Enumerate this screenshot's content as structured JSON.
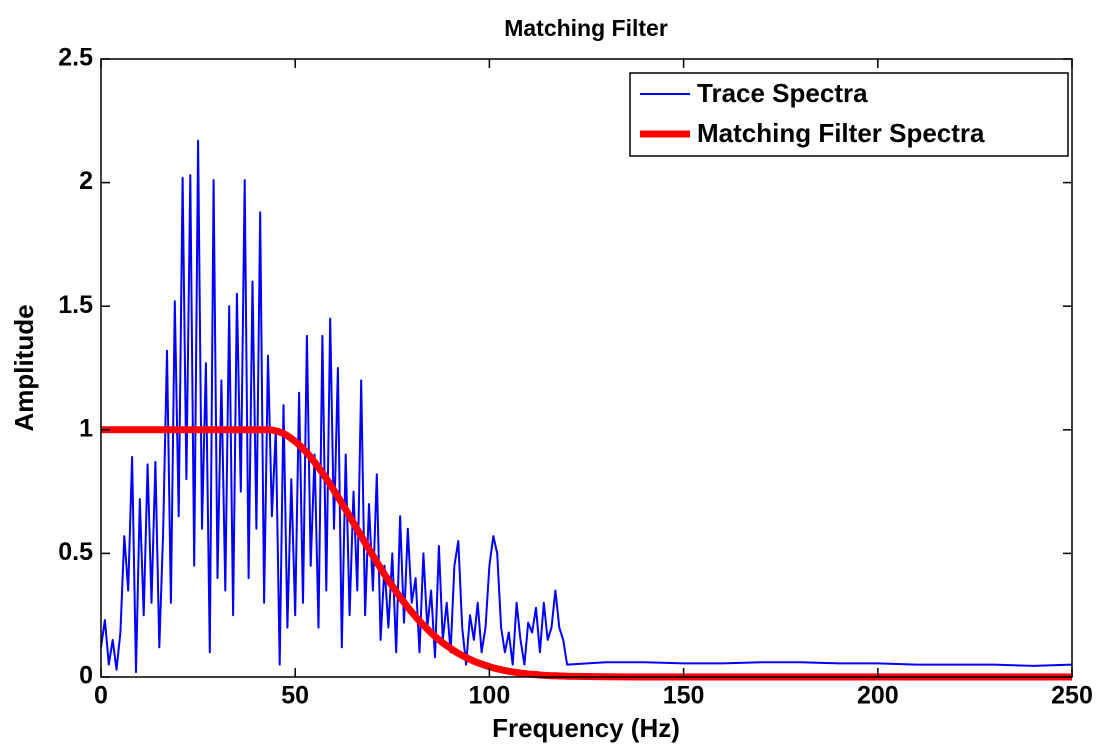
{
  "chart_data": {
    "type": "line",
    "title": "Matching Filter",
    "xlabel": "Frequency (Hz)",
    "ylabel": "Amplitude",
    "x": [
      0,
      1,
      2,
      3,
      4,
      5,
      6,
      7,
      8,
      9,
      10,
      11,
      12,
      13,
      14,
      15,
      16,
      17,
      18,
      19,
      20,
      21,
      22,
      23,
      24,
      25,
      26,
      27,
      28,
      29,
      30,
      31,
      32,
      33,
      34,
      35,
      36,
      37,
      38,
      39,
      40,
      41,
      42,
      43,
      44,
      45,
      46,
      47,
      48,
      49,
      50,
      51,
      52,
      53,
      54,
      55,
      56,
      57,
      58,
      59,
      60,
      61,
      62,
      63,
      64,
      65,
      66,
      67,
      68,
      69,
      70,
      71,
      72,
      73,
      74,
      75,
      76,
      77,
      78,
      79,
      80,
      81,
      82,
      83,
      84,
      85,
      86,
      87,
      88,
      89,
      90,
      91,
      92,
      93,
      94,
      95,
      96,
      97,
      98,
      99,
      100,
      101,
      102,
      103,
      104,
      105,
      106,
      107,
      108,
      109,
      110,
      111,
      112,
      113,
      114,
      115,
      116,
      117,
      118,
      119,
      120,
      130,
      140,
      150,
      160,
      170,
      180,
      190,
      200,
      210,
      220,
      230,
      240,
      250
    ],
    "series": [
      {
        "name": "Trace Spectra",
        "color": "#0000ff",
        "width": 2,
        "values": [
          0.12,
          0.23,
          0.05,
          0.15,
          0.03,
          0.18,
          0.57,
          0.35,
          0.89,
          0.02,
          0.72,
          0.25,
          0.86,
          0.3,
          0.87,
          0.12,
          0.58,
          1.32,
          0.3,
          1.52,
          0.65,
          2.02,
          0.8,
          2.03,
          0.45,
          2.17,
          0.6,
          1.27,
          0.1,
          2.01,
          0.4,
          1.2,
          0.35,
          1.5,
          0.25,
          1.55,
          0.75,
          2.01,
          0.4,
          1.6,
          0.6,
          1.88,
          0.3,
          1.3,
          0.65,
          1.0,
          0.05,
          1.1,
          0.2,
          0.8,
          0.25,
          1.15,
          0.3,
          1.38,
          0.45,
          0.9,
          0.2,
          1.38,
          0.35,
          1.45,
          0.6,
          1.25,
          0.12,
          0.9,
          0.25,
          0.75,
          0.35,
          1.2,
          0.25,
          0.7,
          0.35,
          0.82,
          0.15,
          0.45,
          0.2,
          0.5,
          0.1,
          0.65,
          0.22,
          0.6,
          0.3,
          0.4,
          0.1,
          0.5,
          0.2,
          0.35,
          0.08,
          0.53,
          0.15,
          0.3,
          0.1,
          0.45,
          0.55,
          0.2,
          0.05,
          0.25,
          0.15,
          0.3,
          0.1,
          0.2,
          0.45,
          0.57,
          0.5,
          0.2,
          0.1,
          0.18,
          0.05,
          0.3,
          0.15,
          0.05,
          0.22,
          0.18,
          0.28,
          0.1,
          0.3,
          0.15,
          0.2,
          0.35,
          0.2,
          0.15,
          0.05,
          0.06,
          0.06,
          0.055,
          0.055,
          0.06,
          0.06,
          0.055,
          0.055,
          0.05,
          0.05,
          0.05,
          0.045,
          0.05
        ]
      },
      {
        "name": "Matching Filter Spectra",
        "color": "#ff0000",
        "width": 7,
        "values": [
          1,
          1,
          1,
          1,
          1,
          1,
          1,
          1,
          1,
          1,
          1,
          1,
          1,
          1,
          1,
          1,
          1,
          1,
          1,
          1,
          1,
          1,
          1,
          1,
          1,
          1,
          1,
          1,
          1,
          1,
          1,
          1,
          1,
          1,
          1,
          1,
          1,
          1,
          1,
          1,
          1,
          1,
          1,
          1,
          0.999,
          0.996,
          0.991,
          0.985,
          0.976,
          0.965,
          0.953,
          0.939,
          0.924,
          0.907,
          0.889,
          0.869,
          0.848,
          0.826,
          0.803,
          0.779,
          0.754,
          0.729,
          0.703,
          0.677,
          0.65,
          0.623,
          0.597,
          0.57,
          0.543,
          0.517,
          0.491,
          0.465,
          0.44,
          0.415,
          0.391,
          0.368,
          0.345,
          0.323,
          0.302,
          0.282,
          0.263,
          0.244,
          0.226,
          0.21,
          0.194,
          0.179,
          0.164,
          0.151,
          0.138,
          0.127,
          0.116,
          0.105,
          0.096,
          0.087,
          0.079,
          0.071,
          0.064,
          0.058,
          0.052,
          0.047,
          0.042,
          0.037,
          0.033,
          0.03,
          0.026,
          0.023,
          0.021,
          0.018,
          0.016,
          0.014,
          0.012,
          0.011,
          0.01,
          0.008,
          0.007,
          0.006,
          0.005,
          0.005,
          0.004,
          0.004,
          0.003,
          0.001,
          0,
          0,
          0,
          0,
          0,
          0,
          0,
          0,
          0,
          0,
          0,
          0
        ]
      }
    ],
    "xlim": [
      0,
      250
    ],
    "xticks": [
      0,
      50,
      100,
      150,
      200,
      250
    ],
    "ylim": [
      0,
      2.5
    ],
    "yticks": [
      0,
      0.5,
      1,
      1.5,
      2,
      2.5
    ],
    "grid": false,
    "legend": "upper right"
  }
}
